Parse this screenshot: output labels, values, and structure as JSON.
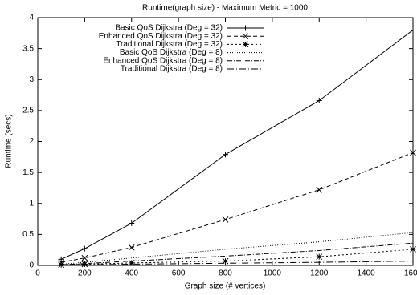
{
  "chart_data": {
    "type": "line",
    "title": "Runtime(graph size) - Maximum Metric = 1000",
    "x_label": "Graph size (# vertices)",
    "y_label": "Runtime (secs)",
    "x": [
      100,
      200,
      400,
      800,
      1200,
      1600
    ],
    "series": [
      {
        "name": "Basic QoS Dijkstra (Deg = 32)",
        "color": "#000000",
        "dash": "none",
        "marker": "plus",
        "values": [
          0.1,
          0.27,
          0.68,
          1.79,
          2.66,
          3.8
        ]
      },
      {
        "name": "Enhanced QoS Dijkstra (Deg = 32)",
        "color": "#000000",
        "dash": "5,3",
        "marker": "cross",
        "values": [
          0.05,
          0.12,
          0.29,
          0.74,
          1.22,
          1.82
        ]
      },
      {
        "name": "Traditional Dijkstra (Deg = 32)",
        "color": "#000000",
        "dash": "2,3",
        "marker": "star",
        "values": [
          0.01,
          0.02,
          0.04,
          0.07,
          0.14,
          0.26
        ]
      },
      {
        "name": "Basic QoS Dijkstra (Deg = 8)",
        "color": "#000000",
        "dash": "1,2",
        "marker": "none",
        "values": [
          0.02,
          0.05,
          0.12,
          0.26,
          0.38,
          0.53
        ]
      },
      {
        "name": "Enhanced QoS Dijkstra (Deg = 8)",
        "color": "#000000",
        "dash": "6,2,1,2",
        "marker": "none",
        "values": [
          0.01,
          0.03,
          0.07,
          0.15,
          0.24,
          0.36
        ]
      },
      {
        "name": "Traditional Dijkstra (Deg = 8)",
        "color": "#000000",
        "dash": "8,3,1,3",
        "marker": "none",
        "values": [
          0.005,
          0.01,
          0.02,
          0.035,
          0.05,
          0.07
        ]
      }
    ],
    "xlim": [
      0,
      1600
    ],
    "xticks": [
      0,
      200,
      400,
      600,
      800,
      1000,
      1200,
      1400,
      1600
    ],
    "ylim": [
      0,
      4
    ],
    "yticks": [
      0,
      0.5,
      1,
      1.5,
      2,
      2.5,
      3,
      3.5,
      4
    ],
    "grid": false,
    "legend": "top-left"
  }
}
